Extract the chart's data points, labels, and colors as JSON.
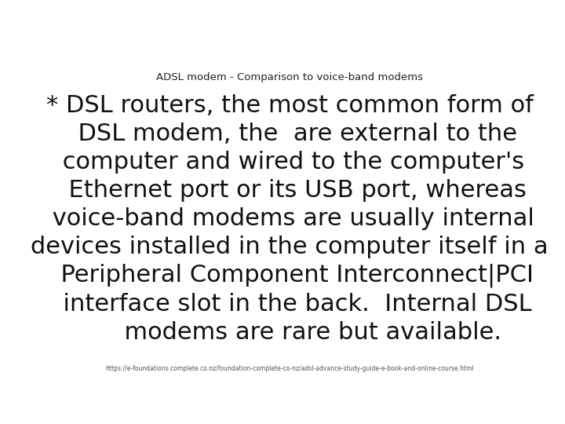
{
  "title": "ADSL modem - Comparison to voice-band modems",
  "title_fontsize": 9.5,
  "title_color": "#222222",
  "body_lines": [
    "* DSL routers, the most common form of",
    "  DSL modem, the  are external to the",
    " computer and wired to the computer's",
    "  Ethernet port or its USB port, whereas",
    " voice-band modems are usually internal",
    "devices installed in the computer itself in a",
    "  Peripheral Component Interconnect|PCI",
    "  interface slot in the back.  Internal DSL",
    "      modems are rare but available."
  ],
  "body_fontsize": 22,
  "body_color": "#111111",
  "footer_text": "https://e-foundations.complete.co.nz/foundation-complete-co-nz/adsl-advance-study-guide-e-book-and-online-course.html",
  "footer_fontsize": 5.5,
  "footer_color": "#555555",
  "bg_color": "#ffffff",
  "figsize": [
    7.2,
    5.4
  ],
  "dpi": 100
}
